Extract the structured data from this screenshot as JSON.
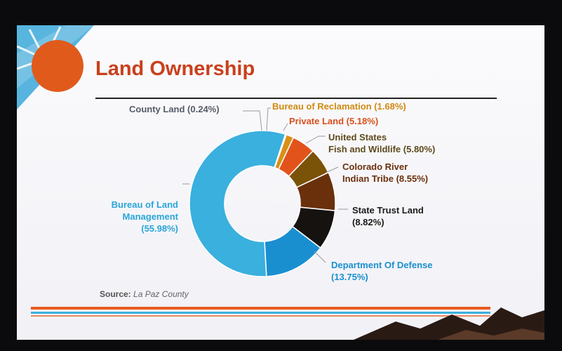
{
  "slide": {
    "title": "Land Ownership",
    "source_label": "Source:",
    "source_value": "La Paz County"
  },
  "colors": {
    "title": "#c8401c",
    "sun": "#e05a1c",
    "sky": "#3aa8d8",
    "stripe_orange": "#e85c1f",
    "stripe_blue": "#3ab0de",
    "mountain": "#2a1a14"
  },
  "chart_data": {
    "type": "pie",
    "donut": true,
    "title": "Land Ownership",
    "series": [
      {
        "name": "County Land",
        "label_lines": [
          "County Land  (0.24%)"
        ],
        "value": 0.24,
        "color": "#c9a23a",
        "label_color": "#555b66"
      },
      {
        "name": "Bureau of Reclamation",
        "label_lines": [
          "Bureau of Reclamation (1.68%)"
        ],
        "value": 1.68,
        "color": "#d99016",
        "label_color": "#d08a12"
      },
      {
        "name": "Private Land",
        "label_lines": [
          "Private Land (5.18%)"
        ],
        "value": 5.18,
        "color": "#e2531c",
        "label_color": "#d9501c"
      },
      {
        "name": "United States Fish and Wildlife",
        "label_lines": [
          "United States",
          "Fish and Wildlife (5.80%)"
        ],
        "value": 5.8,
        "color": "#7a5208",
        "label_color": "#5e4a1c"
      },
      {
        "name": "Colorado River Indian Tribe",
        "label_lines": [
          "Colorado River",
          "Indian Tribe (8.55%)"
        ],
        "value": 8.55,
        "color": "#6a300c",
        "label_color": "#6a300c"
      },
      {
        "name": "State Trust Land",
        "label_lines": [
          "State Trust Land",
          "(8.82%)"
        ],
        "value": 8.82,
        "color": "#161210",
        "label_color": "#1a1a1a"
      },
      {
        "name": "Department Of Defense",
        "label_lines": [
          "Department Of Defense",
          "(13.75%)"
        ],
        "value": 13.75,
        "color": "#1a8fd0",
        "label_color": "#1a8fd0"
      },
      {
        "name": "Bureau of Land Management",
        "label_lines": [
          "Bureau of Land",
          "Management",
          "(55.98%)"
        ],
        "value": 55.98,
        "color": "#3ab0de",
        "label_color": "#2aa6d8"
      }
    ]
  }
}
